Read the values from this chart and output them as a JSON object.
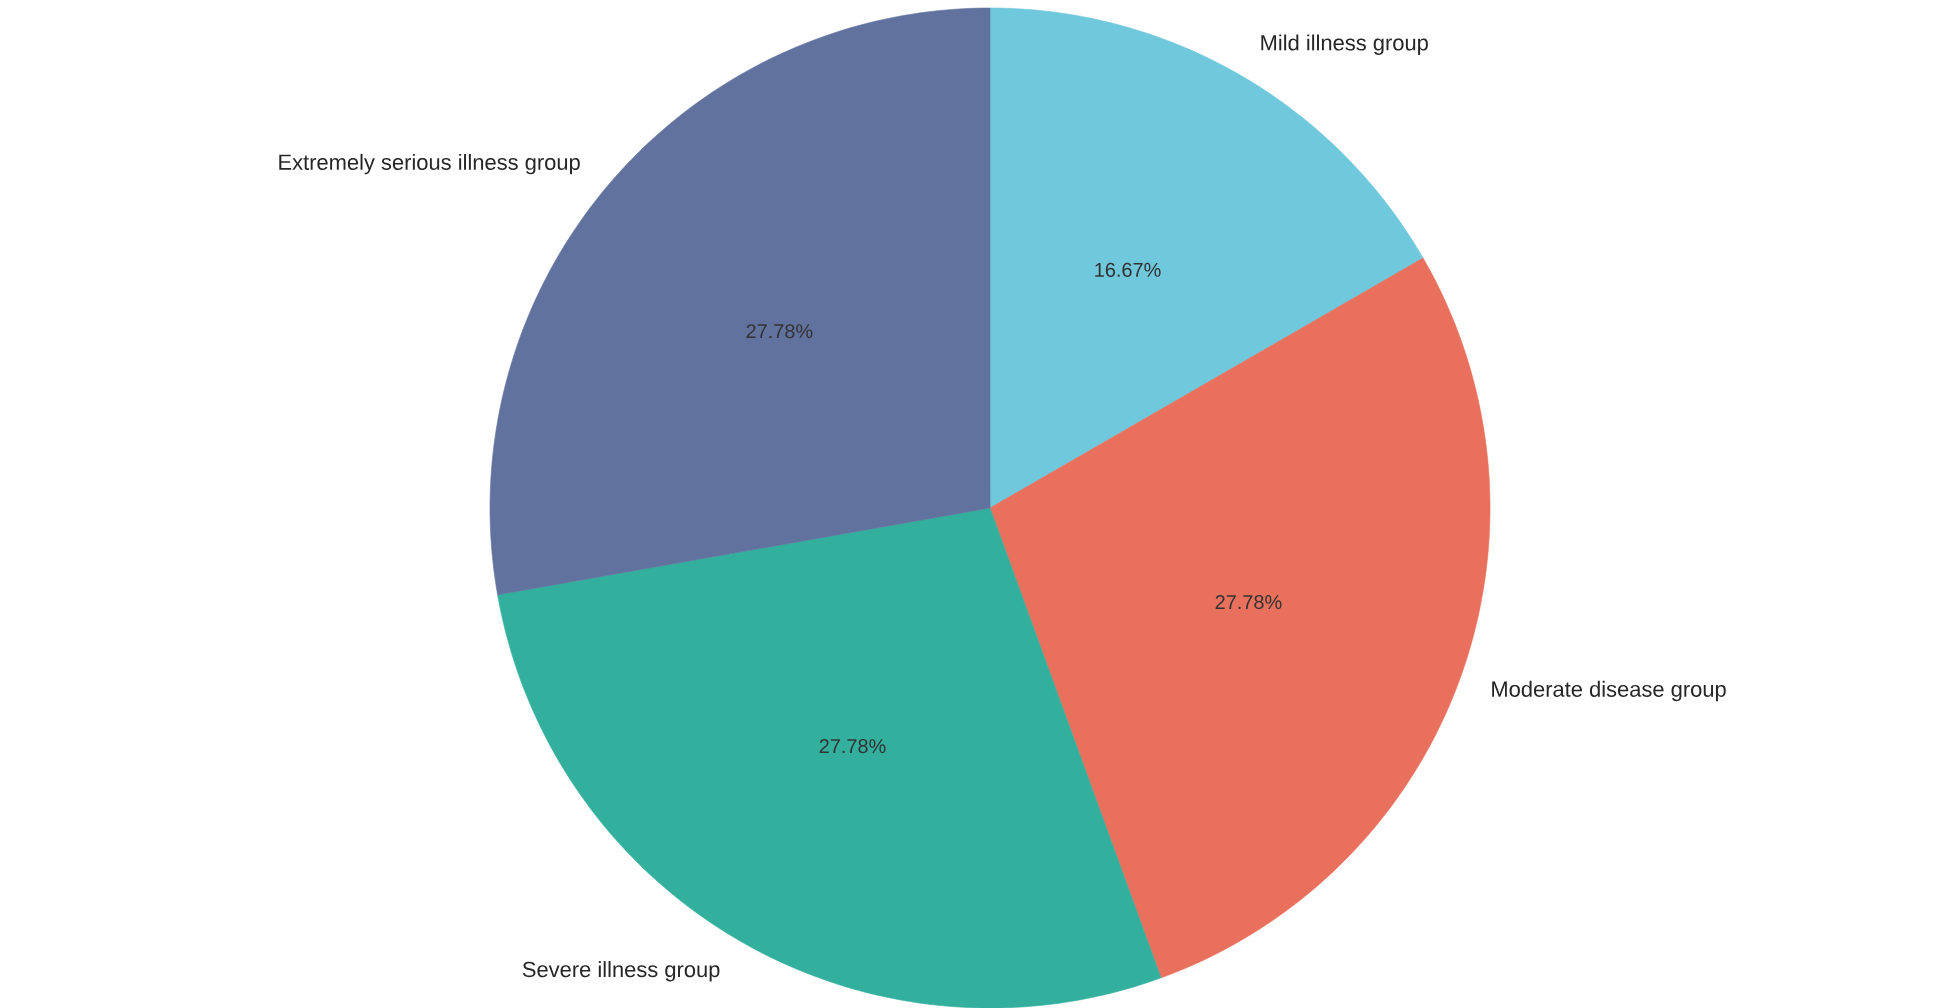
{
  "chart_data": {
    "type": "pie",
    "categories": [
      "Mild illness group",
      "Moderate disease group",
      "Severe illness group",
      "Extremely serious illness group"
    ],
    "values": [
      16.67,
      27.78,
      27.78,
      27.78
    ],
    "value_labels": [
      "16.67%",
      "27.78%",
      "27.78%",
      "27.78%"
    ],
    "colors": [
      "#6fc8dc",
      "#e9705c",
      "#33b09d",
      "#61729e"
    ]
  }
}
